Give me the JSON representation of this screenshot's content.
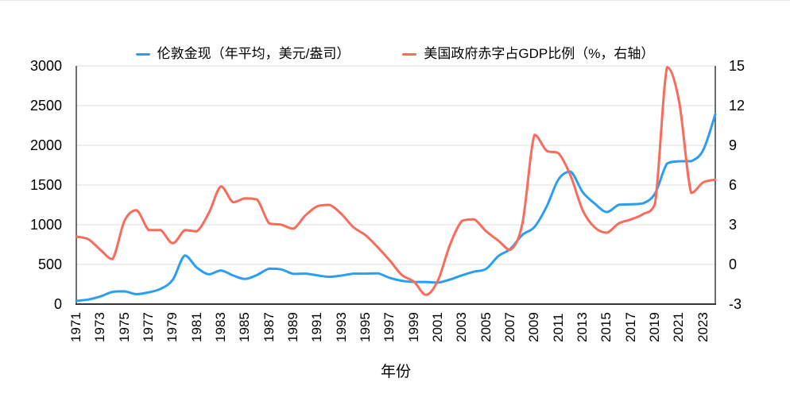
{
  "page": {
    "background": "#ffffff"
  },
  "legend": {
    "gold_label": "伦敦金现（年平均，美元/盎司）",
    "deficit_label": "美国政府赤字占GDP比例（%，右轴）"
  },
  "chart_data": {
    "type": "line",
    "title": "",
    "xlabel": "年份",
    "grid": true,
    "legend_position": "top-center",
    "smooth": true,
    "line_width": 3,
    "colors": {
      "gold": "#2b9ef4",
      "deficit": "#f96b5b",
      "gridline": "#dcdcdc",
      "axis_line": "#3f3f3f",
      "text": "#000000"
    },
    "x": [
      1971,
      1972,
      1973,
      1974,
      1975,
      1976,
      1977,
      1978,
      1979,
      1980,
      1981,
      1982,
      1983,
      1984,
      1985,
      1986,
      1987,
      1988,
      1989,
      1990,
      1991,
      1992,
      1993,
      1994,
      1995,
      1996,
      1997,
      1998,
      1999,
      2000,
      2001,
      2002,
      2003,
      2004,
      2005,
      2006,
      2007,
      2008,
      2009,
      2010,
      2011,
      2012,
      2013,
      2014,
      2015,
      2016,
      2017,
      2018,
      2019,
      2020,
      2021,
      2022,
      2023,
      2024
    ],
    "x_tick_labels": [
      "1971",
      "1973",
      "1975",
      "1977",
      "1979",
      "1981",
      "1983",
      "1985",
      "1987",
      "1989",
      "1991",
      "1993",
      "1995",
      "1997",
      "1999",
      "2001",
      "2003",
      "2005",
      "2007",
      "2009",
      "2011",
      "2013",
      "2015",
      "2017",
      "2019",
      "2021",
      "2023"
    ],
    "series": [
      {
        "name": "伦敦金现（年平均，美元/盎司）",
        "axis": "left",
        "color": "#2b9ef4",
        "values": [
          41,
          58,
          97,
          154,
          161,
          125,
          148,
          193,
          307,
          613,
          460,
          376,
          424,
          361,
          317,
          368,
          447,
          437,
          381,
          384,
          362,
          344,
          360,
          384,
          384,
          388,
          331,
          294,
          279,
          279,
          271,
          310,
          363,
          409,
          445,
          604,
          695,
          872,
          972,
          1225,
          1572,
          1669,
          1411,
          1266,
          1160,
          1251,
          1257,
          1269,
          1393,
          1770,
          1799,
          1800,
          1941,
          2390
        ]
      },
      {
        "name": "美国政府赤字占GDP比例（%，右轴）",
        "axis": "right",
        "color": "#f96b5b",
        "values": [
          2.1,
          1.9,
          1.1,
          0.4,
          3.3,
          4.1,
          2.6,
          2.6,
          1.6,
          2.6,
          2.5,
          3.9,
          5.9,
          4.7,
          5.0,
          4.9,
          3.1,
          3.0,
          2.7,
          3.7,
          4.4,
          4.5,
          3.8,
          2.8,
          2.2,
          1.3,
          0.3,
          -0.8,
          -1.3,
          -2.3,
          -1.2,
          1.5,
          3.3,
          3.4,
          2.5,
          1.8,
          1.1,
          3.1,
          9.8,
          8.6,
          8.4,
          6.7,
          4.1,
          2.8,
          2.4,
          3.1,
          3.4,
          3.8,
          4.6,
          14.9,
          12.3,
          5.4,
          6.2,
          6.4
        ]
      }
    ],
    "left_axis": {
      "min": 0,
      "max": 3000,
      "ticks": [
        0,
        500,
        1000,
        1500,
        2000,
        2500,
        3000
      ],
      "tick_labels": [
        "0",
        "500",
        "1000",
        "1500",
        "2000",
        "2500",
        "3000"
      ]
    },
    "right_axis": {
      "min": -3,
      "max": 15,
      "ticks": [
        -3,
        0,
        3,
        6,
        9,
        12,
        15
      ],
      "tick_labels": [
        "-3",
        "0",
        "3",
        "6",
        "9",
        "12",
        "15"
      ]
    }
  }
}
